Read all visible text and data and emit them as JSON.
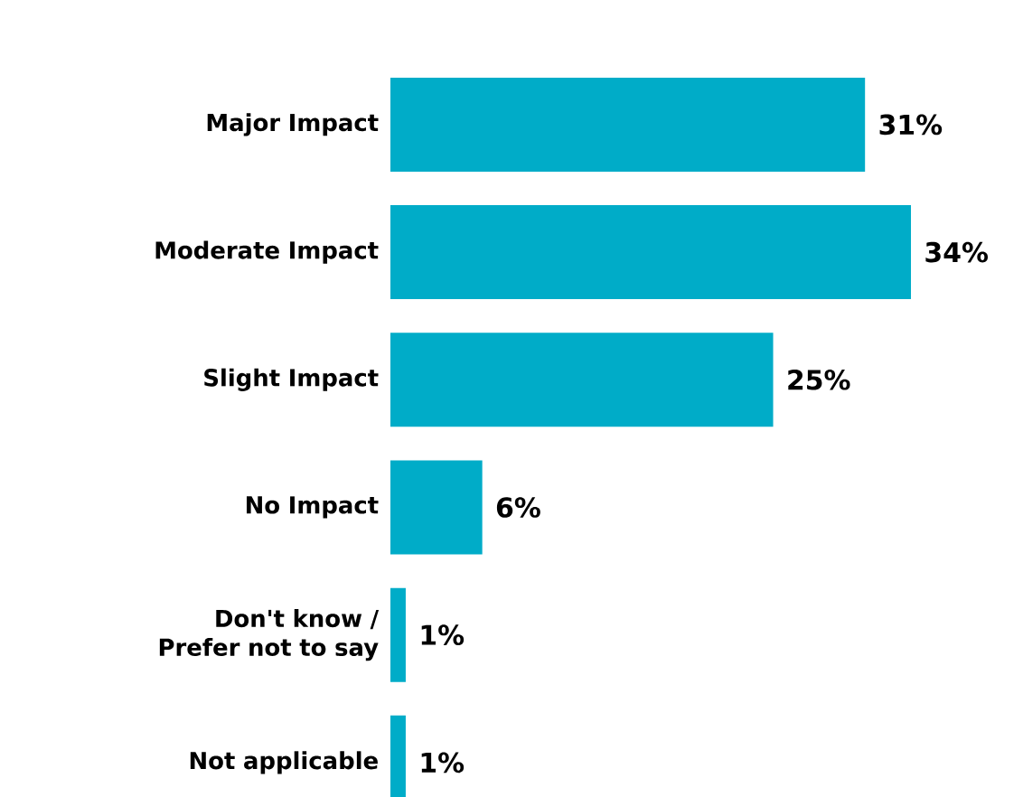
{
  "chart_data": {
    "type": "bar",
    "orientation": "horizontal",
    "categories": [
      "Major Impact",
      "Moderate Impact",
      "Slight Impact",
      "No Impact",
      "Don't know / Prefer not to say",
      "Not applicable"
    ],
    "values": [
      31,
      34,
      25,
      6,
      1,
      1
    ],
    "value_labels": [
      "31%",
      "34%",
      "25%",
      "6%",
      "1%",
      "1%"
    ],
    "color": "#00acc8"
  }
}
